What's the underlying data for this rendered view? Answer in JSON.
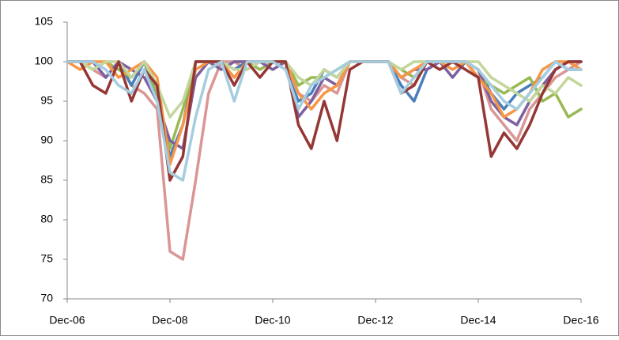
{
  "chart_data": {
    "type": "line",
    "categories": [
      "Dec-06",
      null,
      null,
      null,
      null,
      null,
      null,
      null,
      "Dec-08",
      null,
      null,
      null,
      null,
      null,
      null,
      null,
      "Dec-10",
      null,
      null,
      null,
      null,
      null,
      null,
      null,
      "Dec-12",
      null,
      null,
      null,
      null,
      null,
      null,
      null,
      "Dec-14",
      null,
      null,
      null,
      null,
      null,
      null,
      null,
      "Dec-16"
    ],
    "ylim": [
      70,
      105
    ],
    "yticks": [
      70,
      75,
      80,
      85,
      90,
      95,
      100,
      105
    ],
    "grid": false,
    "series": [
      {
        "color": "#d99694",
        "values": [
          100,
          100,
          99,
          98,
          100,
          97,
          96,
          94,
          76,
          75,
          85,
          96,
          100,
          100,
          99,
          100,
          100,
          100,
          96,
          95,
          97,
          96,
          100,
          100,
          100,
          100,
          98,
          97,
          100,
          100,
          100,
          100,
          99,
          94,
          92,
          90,
          94,
          96,
          98,
          99,
          100
        ]
      },
      {
        "color": "#4a7ebb",
        "values": [
          100,
          100,
          100,
          98,
          100,
          97,
          100,
          95,
          88,
          92,
          100,
          100,
          100,
          99,
          100,
          100,
          100,
          99,
          95,
          96,
          99,
          98,
          100,
          100,
          100,
          100,
          97,
          95,
          99,
          100,
          100,
          100,
          99,
          96,
          94,
          96,
          97,
          98,
          100,
          99,
          99
        ]
      },
      {
        "color": "#98b954",
        "values": [
          100,
          100,
          99,
          100,
          99,
          98,
          100,
          96,
          89,
          94,
          100,
          100,
          99,
          100,
          100,
          99,
          100,
          100,
          97,
          98,
          98,
          99,
          100,
          100,
          100,
          100,
          99,
          98,
          100,
          100,
          100,
          100,
          98,
          97,
          96,
          97,
          98,
          95,
          96,
          93,
          94
        ]
      },
      {
        "color": "#7d60a0",
        "values": [
          100,
          100,
          100,
          98,
          100,
          99,
          98,
          95,
          90,
          89,
          98,
          100,
          99,
          100,
          100,
          100,
          99,
          100,
          93,
          95,
          98,
          97,
          100,
          100,
          100,
          100,
          98,
          99,
          99,
          100,
          98,
          100,
          99,
          95,
          93,
          92,
          95,
          97,
          99,
          100,
          100
        ]
      },
      {
        "color": "#f79646",
        "values": [
          100,
          99,
          100,
          100,
          98,
          99,
          100,
          98,
          87,
          92,
          99,
          100,
          100,
          98,
          100,
          100,
          100,
          100,
          96,
          94,
          96,
          97,
          100,
          100,
          100,
          100,
          98,
          99,
          100,
          100,
          99,
          100,
          98,
          96,
          93,
          94,
          96,
          99,
          100,
          100,
          99
        ]
      },
      {
        "color": "#c3d69b",
        "values": [
          100,
          100,
          99,
          100,
          100,
          98,
          100,
          97,
          93,
          95,
          100,
          100,
          100,
          99,
          99,
          100,
          100,
          100,
          98,
          97,
          99,
          98,
          100,
          100,
          100,
          100,
          99,
          100,
          100,
          100,
          100,
          100,
          100,
          98,
          97,
          96,
          95,
          97,
          96,
          98,
          97
        ]
      },
      {
        "color": "#953735",
        "values": [
          100,
          100,
          97,
          96,
          100,
          95,
          99,
          97,
          85,
          88,
          100,
          100,
          100,
          97,
          100,
          98,
          100,
          100,
          92,
          89,
          95,
          90,
          99,
          100,
          100,
          100,
          96,
          97,
          100,
          99,
          100,
          99,
          98,
          88,
          91,
          89,
          92,
          96,
          99,
          100,
          100
        ]
      },
      {
        "color": "#a5cde0",
        "values": [
          100,
          100,
          100,
          99,
          97,
          96,
          99,
          95,
          86,
          85,
          93,
          99,
          100,
          95,
          100,
          100,
          100,
          99,
          94,
          97,
          98,
          99,
          100,
          100,
          100,
          100,
          96,
          98,
          100,
          100,
          100,
          100,
          99,
          97,
          95,
          94,
          96,
          98,
          100,
          99,
          99
        ]
      }
    ]
  }
}
